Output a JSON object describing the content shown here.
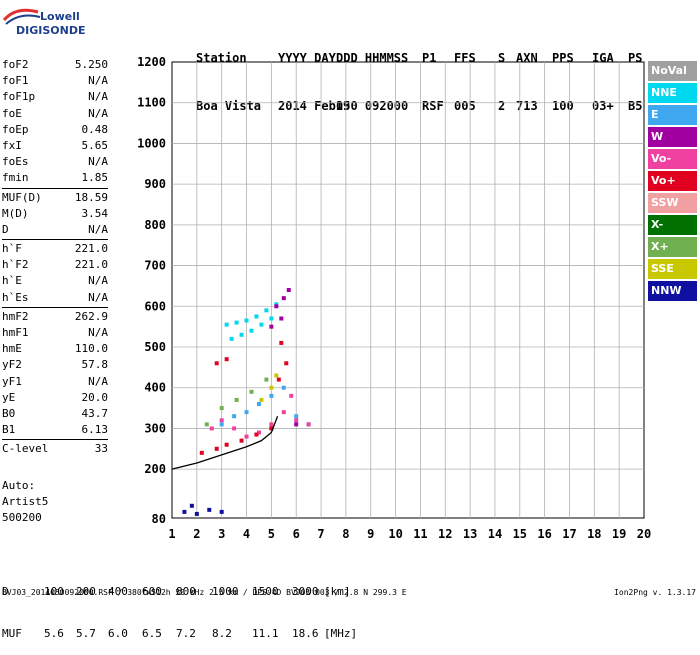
{
  "logo": {
    "line1": "Lowell",
    "line2": "DIGISONDE"
  },
  "header": {
    "labels": [
      "Station",
      "YYYY DAY",
      "DDD HHMMSS",
      "P1",
      "FFS",
      "S",
      "AXN",
      "PPS",
      "IGA",
      "PS"
    ],
    "values": [
      "Boa Vista",
      "2014 Feb19",
      "050 092000",
      "RSF",
      "005",
      "2",
      "713",
      "100",
      "03+",
      "B5"
    ]
  },
  "params": [
    {
      "k": "foF2",
      "v": "5.250"
    },
    {
      "k": "foF1",
      "v": "N/A"
    },
    {
      "k": "foF1p",
      "v": "N/A"
    },
    {
      "k": "foE",
      "v": "N/A"
    },
    {
      "k": "foEp",
      "v": "0.48"
    },
    {
      "k": "fxI",
      "v": "5.65"
    },
    {
      "k": "foEs",
      "v": "N/A"
    },
    {
      "k": "fmin",
      "v": "1.85"
    },
    {
      "sep": true
    },
    {
      "k": "MUF(D)",
      "v": "18.59"
    },
    {
      "k": "M(D)",
      "v": "3.54"
    },
    {
      "k": "D",
      "v": "N/A"
    },
    {
      "sep": true
    },
    {
      "k": "h`F",
      "v": "221.0"
    },
    {
      "k": "h`F2",
      "v": "221.0"
    },
    {
      "k": "h`E",
      "v": "N/A"
    },
    {
      "k": "h`Es",
      "v": "N/A"
    },
    {
      "sep": true
    },
    {
      "k": "hmF2",
      "v": "262.9"
    },
    {
      "k": "hmF1",
      "v": "N/A"
    },
    {
      "k": "hmE",
      "v": "110.0"
    },
    {
      "k": "yF2",
      "v": "57.8"
    },
    {
      "k": "yF1",
      "v": "N/A"
    },
    {
      "k": "yE",
      "v": "20.0"
    },
    {
      "k": "B0",
      "v": "43.7"
    },
    {
      "k": "B1",
      "v": "6.13"
    },
    {
      "sep": true
    },
    {
      "k": "C-level",
      "v": "33"
    }
  ],
  "auto": {
    "line1": "Auto:",
    "line2": "Artist5",
    "line3": "500200"
  },
  "dmuf": {
    "d_label": "D",
    "d_values": [
      "100",
      "200",
      "400",
      "600",
      "800",
      "1000",
      "1500",
      "3000",
      "[km]"
    ],
    "muf_label": "MUF",
    "muf_values": [
      "5.6",
      "5.7",
      "6.0",
      "6.5",
      "7.2",
      "8.2",
      "11.1",
      "18.6",
      "[MHz]"
    ]
  },
  "footer": {
    "text": "BVJ03_2014050092000.RSF / 380fx512h 50 kHz 2.5 km / DPS-4D BVJ03 003 / 2.8 N 299.3 E",
    "version": "Ion2Png v. 1.3.17"
  },
  "legend": [
    {
      "label": "NoVal",
      "color": "#a0a0a0"
    },
    {
      "label": "NNE",
      "color": "#00d8f0"
    },
    {
      "label": "E",
      "color": "#3fa8f0"
    },
    {
      "label": "W",
      "color": "#a000a0"
    },
    {
      "label": "Vo-",
      "color": "#f040a0"
    },
    {
      "label": "Vo+",
      "color": "#e00020"
    },
    {
      "label": "SSW",
      "color": "#f0a0a0"
    },
    {
      "label": "X-",
      "color": "#007000"
    },
    {
      "label": "X+",
      "color": "#70b050"
    },
    {
      "label": "SSE",
      "color": "#c8c800"
    },
    {
      "label": "NNW",
      "color": "#1010a0"
    }
  ],
  "chart_data": {
    "type": "scatter",
    "xlim": [
      1,
      20
    ],
    "ylim": [
      80,
      1200
    ],
    "x_ticks": [
      "1",
      "2",
      "3",
      "4",
      "5",
      "6",
      "7",
      "8",
      "9",
      "10",
      "11",
      "12",
      "13",
      "14",
      "15",
      "16",
      "17",
      "18",
      "19",
      "20"
    ],
    "y_ticks": [
      "200",
      "300",
      "400",
      "500",
      "600",
      "700",
      "800",
      "900",
      "1000",
      "1100",
      "1200"
    ],
    "y_tick_80": "80",
    "grid": true,
    "series": [
      {
        "name": "NNE",
        "color": "#00d8f0",
        "points": [
          [
            3.2,
            555
          ],
          [
            3.6,
            560
          ],
          [
            4.0,
            565
          ],
          [
            4.4,
            575
          ],
          [
            4.8,
            590
          ],
          [
            5.2,
            605
          ],
          [
            3.4,
            520
          ],
          [
            3.8,
            530
          ],
          [
            4.2,
            540
          ],
          [
            4.6,
            555
          ],
          [
            5.0,
            570
          ]
        ]
      },
      {
        "name": "E",
        "color": "#3fa8f0",
        "points": [
          [
            3.0,
            310
          ],
          [
            3.5,
            330
          ],
          [
            4.0,
            340
          ],
          [
            4.5,
            360
          ],
          [
            5.0,
            380
          ],
          [
            5.5,
            400
          ],
          [
            6.0,
            330
          ],
          [
            6.5,
            310
          ]
        ]
      },
      {
        "name": "Vo-",
        "color": "#f040a0",
        "points": [
          [
            2.6,
            300
          ],
          [
            3.0,
            320
          ],
          [
            3.5,
            300
          ],
          [
            4.0,
            280
          ],
          [
            4.5,
            290
          ],
          [
            5.0,
            310
          ],
          [
            5.5,
            340
          ],
          [
            5.8,
            380
          ],
          [
            6.0,
            320
          ],
          [
            6.5,
            310
          ]
        ]
      },
      {
        "name": "Vo+",
        "color": "#e00020",
        "points": [
          [
            2.2,
            240
          ],
          [
            2.8,
            250
          ],
          [
            3.2,
            260
          ],
          [
            3.8,
            270
          ],
          [
            4.4,
            285
          ],
          [
            5.0,
            300
          ],
          [
            5.3,
            420
          ],
          [
            5.6,
            460
          ],
          [
            2.8,
            460
          ],
          [
            3.2,
            470
          ],
          [
            5.4,
            510
          ]
        ]
      },
      {
        "name": "W",
        "color": "#a000a0",
        "points": [
          [
            5.2,
            600
          ],
          [
            5.5,
            620
          ],
          [
            5.7,
            640
          ],
          [
            5.0,
            550
          ],
          [
            5.4,
            570
          ],
          [
            6.0,
            310
          ]
        ]
      },
      {
        "name": "NNW",
        "color": "#1010a0",
        "points": [
          [
            1.5,
            95
          ],
          [
            2.0,
            90
          ],
          [
            2.5,
            100
          ],
          [
            3.0,
            95
          ],
          [
            1.8,
            110
          ]
        ]
      },
      {
        "name": "X+",
        "color": "#70b050",
        "points": [
          [
            2.4,
            310
          ],
          [
            3.0,
            350
          ],
          [
            3.6,
            370
          ],
          [
            4.2,
            390
          ],
          [
            4.8,
            420
          ]
        ]
      },
      {
        "name": "SSE",
        "color": "#c8c800",
        "points": [
          [
            4.6,
            370
          ],
          [
            5.0,
            400
          ],
          [
            5.2,
            430
          ]
        ]
      }
    ],
    "profile_x": [
      1.0,
      2.0,
      3.0,
      4.0,
      4.6,
      5.0,
      5.25
    ],
    "profile_y": [
      200,
      215,
      235,
      255,
      270,
      290,
      330
    ]
  }
}
